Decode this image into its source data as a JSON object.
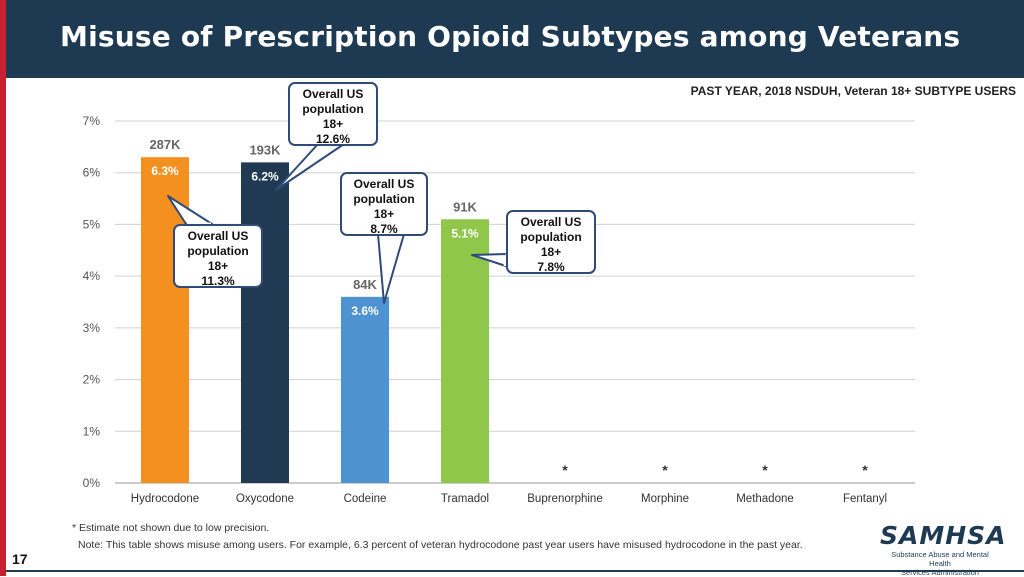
{
  "header": {
    "title": "Misuse of Prescription Opioid Subtypes among Veterans"
  },
  "subtitle": "PAST YEAR, 2018 NSDUH, Veteran 18+ SUBTYPE USERS",
  "chart_data": {
    "type": "bar",
    "title": "Misuse of Prescription Opioid Subtypes among Veterans",
    "xlabel": "",
    "ylabel": "",
    "ylim": [
      0,
      7
    ],
    "y_ticks": [
      "0%",
      "1%",
      "2%",
      "3%",
      "4%",
      "5%",
      "6%",
      "7%"
    ],
    "grid": true,
    "categories": [
      "Hydrocodone",
      "Oxycodone",
      "Codeine",
      "Tramadol",
      "Buprenorphine",
      "Morphine",
      "Methadone",
      "Fentanyl"
    ],
    "values": [
      6.3,
      6.2,
      3.6,
      5.1,
      null,
      null,
      null,
      null
    ],
    "value_labels": [
      "6.3%",
      "6.2%",
      "3.6%",
      "5.1%",
      "*",
      "*",
      "*",
      "*"
    ],
    "count_labels": [
      "287K",
      "193K",
      "84K",
      "91K",
      "",
      "",
      "",
      ""
    ],
    "bar_colors": [
      "#f39020",
      "#1f3a52",
      "#4f92d1",
      "#8fc74a",
      "",
      "",
      "",
      ""
    ],
    "annotations": [
      {
        "category": "Hydrocodone",
        "lines": [
          "Overall US",
          "population",
          "18+",
          "11.3%"
        ]
      },
      {
        "category": "Oxycodone",
        "lines": [
          "Overall US",
          "population",
          "18+",
          "12.6%"
        ]
      },
      {
        "category": "Codeine",
        "lines": [
          "Overall US",
          "population",
          "18+",
          "8.7%"
        ]
      },
      {
        "category": "Tramadol",
        "lines": [
          "Overall US",
          "population",
          "18+",
          "7.8%"
        ]
      }
    ]
  },
  "footnote": "* Estimate not shown due to low precision.",
  "note": "Note:  This table shows misuse among users.  For example, 6.3 percent of veteran hydrocodone past year users have misused hydrocodone in the past year.",
  "page_number": "17",
  "logo": {
    "word": "SAMHSA",
    "line1": "Substance Abuse and Mental Health",
    "line2": "Services Administration"
  },
  "colors": {
    "header_bg": "#1e3a52",
    "accent": "#c8202f",
    "callout_border": "#2f4b7a"
  }
}
